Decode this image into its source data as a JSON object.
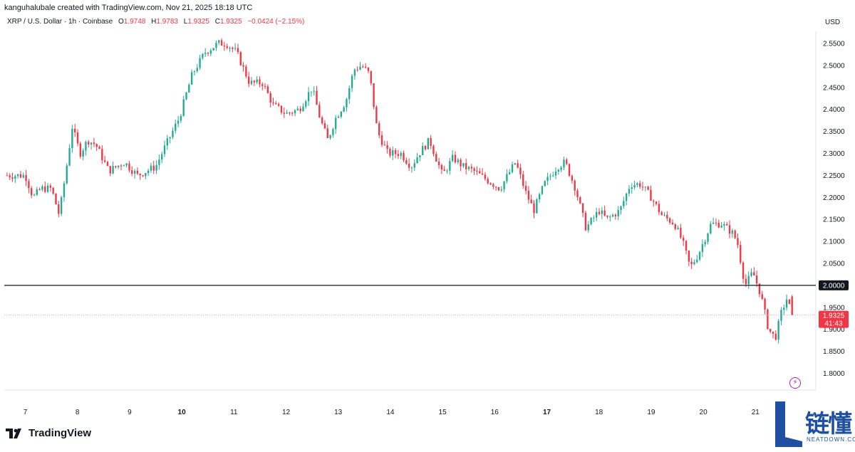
{
  "header": {
    "created_by": "kanguhalubale created with TradingView.com, Nov 21, 2025 18:18 UTC"
  },
  "legend": {
    "symbol": "XRP / U.S. Dollar · 1h · Coinbase",
    "open_label": "O",
    "open_value": "1.9748",
    "high_label": "H",
    "high_value": "1.9783",
    "low_label": "L",
    "low_value": "1.9325",
    "close_label": "C",
    "close_value": "1.9325",
    "change": "−0.0424 (−2.15%)"
  },
  "currency": "USD",
  "brand": {
    "logo_text": "TradingView"
  },
  "watermark": {
    "chinese": "链懂",
    "english": "NEATDOWN.COM"
  },
  "colors": {
    "up": "#22ab94",
    "down": "#f23645",
    "level_line": "#131722",
    "level_tag": "#131722",
    "price_tag": "#f23645",
    "axis_text": "#131722"
  },
  "chart_data": {
    "type": "candlestick",
    "y_axis": {
      "ylim": [
        1.76,
        2.6
      ],
      "ticks": [
        "2.5500",
        "2.5000",
        "2.4500",
        "2.4000",
        "2.3500",
        "2.3000",
        "2.2500",
        "2.2000",
        "2.1500",
        "2.1000",
        "2.0500",
        "1.9500",
        "1.9000",
        "1.8500",
        "1.8000"
      ],
      "position": "right"
    },
    "x_axis": {
      "labels": [
        "7",
        "8",
        "9",
        "10",
        "11",
        "12",
        "13",
        "14",
        "15",
        "16",
        "17",
        "18",
        "19",
        "20",
        "21"
      ],
      "bold_labels": [
        "10",
        "17"
      ],
      "day_start": 7,
      "day_end": 21.75
    },
    "horizontal_line": {
      "value": 2.0,
      "label": "2.0000"
    },
    "last_price": {
      "value": 1.9325,
      "label": "1.9325",
      "countdown": "41:43"
    },
    "anchors": [
      [
        7.0,
        2.25
      ],
      [
        7.15,
        2.2
      ],
      [
        7.3,
        2.22
      ],
      [
        7.5,
        2.22
      ],
      [
        7.65,
        2.16
      ],
      [
        7.78,
        2.26
      ],
      [
        7.9,
        2.36
      ],
      [
        8.05,
        2.3
      ],
      [
        8.2,
        2.33
      ],
      [
        8.35,
        2.32
      ],
      [
        8.6,
        2.26
      ],
      [
        8.9,
        2.28
      ],
      [
        9.15,
        2.25
      ],
      [
        9.5,
        2.27
      ],
      [
        9.7,
        2.32
      ],
      [
        9.95,
        2.38
      ],
      [
        10.2,
        2.48
      ],
      [
        10.45,
        2.53
      ],
      [
        10.7,
        2.55
      ],
      [
        10.85,
        2.55
      ],
      [
        11.05,
        2.53
      ],
      [
        11.3,
        2.46
      ],
      [
        11.55,
        2.46
      ],
      [
        11.75,
        2.41
      ],
      [
        12.0,
        2.39
      ],
      [
        12.25,
        2.4
      ],
      [
        12.5,
        2.45
      ],
      [
        12.65,
        2.38
      ],
      [
        12.8,
        2.33
      ],
      [
        12.95,
        2.38
      ],
      [
        13.15,
        2.42
      ],
      [
        13.3,
        2.49
      ],
      [
        13.45,
        2.5
      ],
      [
        13.6,
        2.48
      ],
      [
        13.75,
        2.35
      ],
      [
        13.95,
        2.3
      ],
      [
        14.2,
        2.3
      ],
      [
        14.4,
        2.27
      ],
      [
        14.55,
        2.3
      ],
      [
        14.75,
        2.33
      ],
      [
        15.0,
        2.25
      ],
      [
        15.2,
        2.29
      ],
      [
        15.4,
        2.27
      ],
      [
        15.6,
        2.26
      ],
      [
        15.85,
        2.24
      ],
      [
        16.1,
        2.22
      ],
      [
        16.4,
        2.28
      ],
      [
        16.6,
        2.21
      ],
      [
        16.75,
        2.17
      ],
      [
        16.95,
        2.23
      ],
      [
        17.2,
        2.27
      ],
      [
        17.35,
        2.28
      ],
      [
        17.55,
        2.22
      ],
      [
        17.75,
        2.13
      ],
      [
        18.0,
        2.17
      ],
      [
        18.15,
        2.15
      ],
      [
        18.4,
        2.17
      ],
      [
        18.6,
        2.23
      ],
      [
        18.8,
        2.23
      ],
      [
        19.0,
        2.2
      ],
      [
        19.2,
        2.16
      ],
      [
        19.45,
        2.14
      ],
      [
        19.6,
        2.1
      ],
      [
        19.75,
        2.04
      ],
      [
        19.9,
        2.07
      ],
      [
        20.15,
        2.14
      ],
      [
        20.35,
        2.14
      ],
      [
        20.55,
        2.12
      ],
      [
        20.65,
        2.1
      ],
      [
        20.8,
        2.0
      ],
      [
        20.95,
        2.03
      ],
      [
        21.1,
        1.98
      ],
      [
        21.25,
        1.9
      ],
      [
        21.38,
        1.88
      ],
      [
        21.5,
        1.94
      ],
      [
        21.6,
        1.97
      ],
      [
        21.7,
        1.9325
      ]
    ]
  }
}
